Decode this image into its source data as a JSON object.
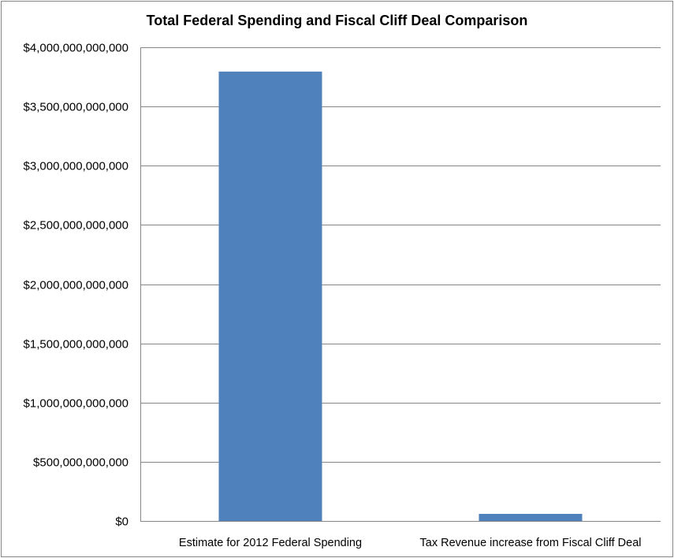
{
  "chart_data": {
    "type": "bar",
    "title": "Total Federal Spending and Fiscal Cliff Deal Comparison",
    "xlabel": "",
    "ylabel": "",
    "categories": [
      "Estimate for 2012 Federal Spending",
      "Tax Revenue increase from Fiscal Cliff Deal"
    ],
    "values": [
      3795000000000,
      60000000000
    ],
    "ylim": [
      0,
      4000000000000
    ],
    "yticks": [
      0,
      500000000000,
      1000000000000,
      1500000000000,
      2000000000000,
      2500000000000,
      3000000000000,
      3500000000000,
      4000000000000
    ],
    "ytick_labels": [
      "$0",
      "$500,000,000,000",
      "$1,000,000,000,000",
      "$1,500,000,000,000",
      "$2,000,000,000,000",
      "$2,500,000,000,000",
      "$3,000,000,000,000",
      "$3,500,000,000,000",
      "$4,000,000,000,000"
    ],
    "grid": true,
    "legend": "none",
    "bar_color": "#4f81bd",
    "grid_color": "#868686"
  }
}
